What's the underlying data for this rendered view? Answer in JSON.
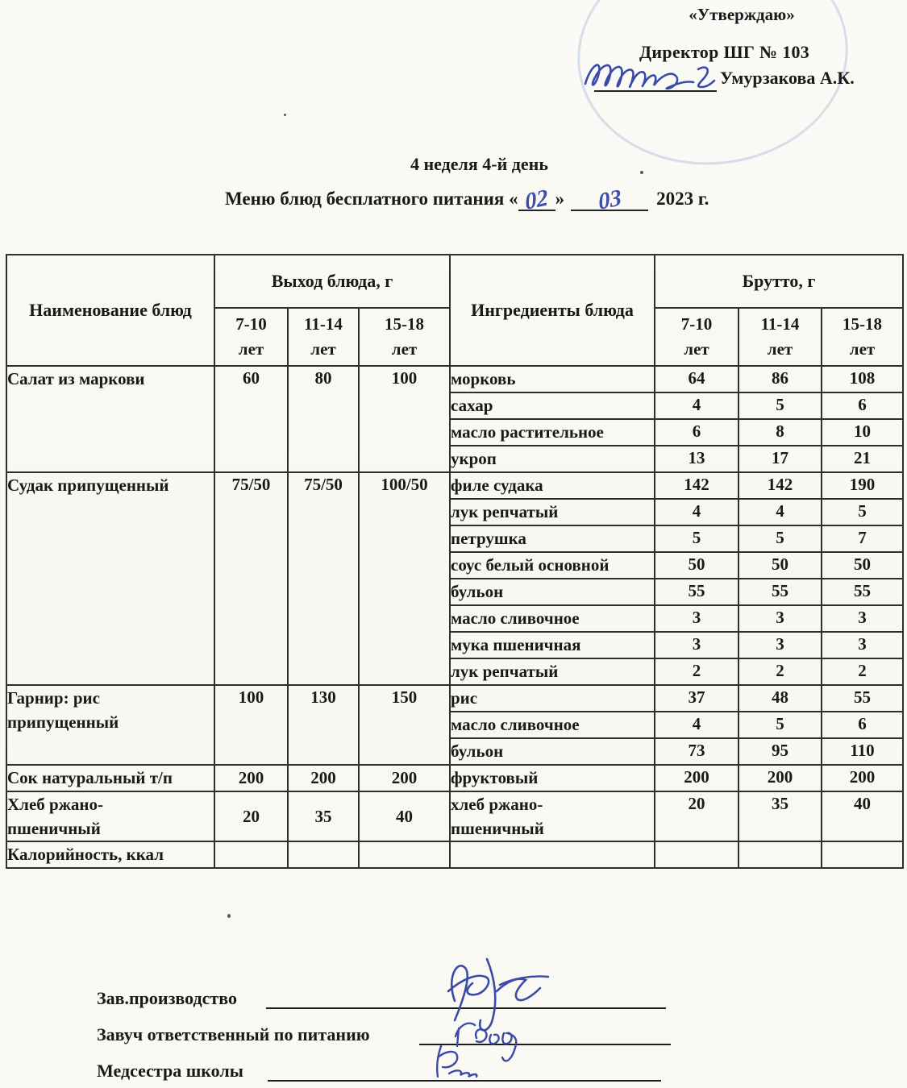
{
  "approval": {
    "approve_label": "«Утверждаю»",
    "director_line": "Директор ШГ № 103",
    "director_name": "Умурзакова А.К."
  },
  "title": {
    "week_day": "4 неделя 4-й день",
    "menu_prefix": "Меню блюд бесплатного питания «",
    "menu_close": "»",
    "menu_day": "02",
    "menu_month": "03",
    "menu_year": "2023 г."
  },
  "table": {
    "headers": {
      "dish_name": "Наименование блюд",
      "output_group": "Выход блюда, г",
      "ingredients": "Ингредиенты блюда",
      "gross_group": "Брутто, г",
      "age_ranges": [
        "7-10",
        "11-14",
        "15-18"
      ],
      "age_unit": "лет"
    },
    "groups": [
      {
        "name": "Салат из маркови",
        "outputs": [
          "60",
          "80",
          "100"
        ],
        "ingredients": [
          {
            "name": "морковь",
            "values": [
              "64",
              "86",
              "108"
            ]
          },
          {
            "name": "сахар",
            "values": [
              "4",
              "5",
              "6"
            ]
          },
          {
            "name": "масло растительное",
            "values": [
              "6",
              "8",
              "10"
            ]
          },
          {
            "name": "укроп",
            "values": [
              "13",
              "17",
              "21"
            ]
          }
        ]
      },
      {
        "name": "Судак припущенный",
        "outputs": [
          "75/50",
          "75/50",
          "100/50"
        ],
        "ingredients": [
          {
            "name": "филе судака",
            "values": [
              "142",
              "142",
              "190"
            ]
          },
          {
            "name": "лук репчатый",
            "values": [
              "4",
              "4",
              "5"
            ]
          },
          {
            "name": "петрушка",
            "values": [
              "5",
              "5",
              "7"
            ]
          },
          {
            "name": "соус белый основной",
            "values": [
              "50",
              "50",
              "50"
            ]
          },
          {
            "name": "бульон",
            "values": [
              "55",
              "55",
              "55"
            ]
          },
          {
            "name": "масло сливочное",
            "values": [
              "3",
              "3",
              "3"
            ]
          },
          {
            "name": "мука пшеничная",
            "values": [
              "3",
              "3",
              "3"
            ]
          },
          {
            "name": "лук репчатый",
            "values": [
              "2",
              "2",
              "2"
            ]
          }
        ]
      },
      {
        "name": "Гарнир: рис\nприпущенный",
        "outputs": [
          "100",
          "130",
          "150"
        ],
        "ingredients": [
          {
            "name": "рис",
            "values": [
              "37",
              "48",
              "55"
            ]
          },
          {
            "name": "масло сливочное",
            "values": [
              "4",
              "5",
              "6"
            ]
          },
          {
            "name": "бульон",
            "values": [
              "73",
              "95",
              "110"
            ]
          }
        ]
      },
      {
        "name": "Сок натуральный т/п",
        "outputs": [
          "200",
          "200",
          "200"
        ],
        "ingredients": [
          {
            "name": "фруктовый",
            "values": [
              "200",
              "200",
              "200"
            ]
          }
        ]
      },
      {
        "name": "Хлеб ржано-\nпшеничный",
        "outputs": [
          "20",
          "35",
          "40"
        ],
        "ingredients": [
          {
            "name": "хлеб ржано-\nпшеничный",
            "values": [
              "20",
              "35",
              "40"
            ]
          }
        ]
      },
      {
        "name": "Калорийность, ккал",
        "outputs": [
          "",
          "",
          ""
        ],
        "ingredients": [
          {
            "name": "",
            "values": [
              "",
              "",
              ""
            ]
          }
        ]
      }
    ]
  },
  "signatures": [
    {
      "label": "Зав.производство"
    },
    {
      "label": "Завуч ответственный по питанию"
    },
    {
      "label": "Медсестра школы"
    }
  ]
}
